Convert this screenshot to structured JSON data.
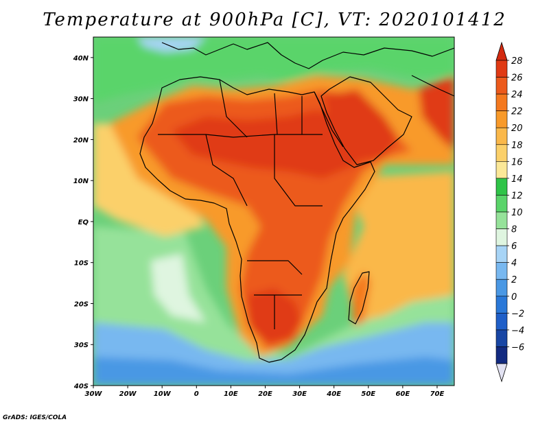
{
  "title": "Temperature at 900hPa [C], VT: 2020101412",
  "credit": "GrADS: IGES/COLA",
  "map": {
    "variable": "Temperature",
    "level": "900hPa",
    "units": "C",
    "valid_time": "2020101412",
    "region": "Africa",
    "lon_range": [
      -30,
      75
    ],
    "lat_range": [
      -40,
      45
    ],
    "lon_ticks": [
      {
        "lon": -30,
        "label": "30W"
      },
      {
        "lon": -20,
        "label": "20W"
      },
      {
        "lon": -10,
        "label": "10W"
      },
      {
        "lon": 0,
        "label": "0"
      },
      {
        "lon": 10,
        "label": "10E"
      },
      {
        "lon": 20,
        "label": "20E"
      },
      {
        "lon": 30,
        "label": "30E"
      },
      {
        "lon": 40,
        "label": "40E"
      },
      {
        "lon": 50,
        "label": "50E"
      },
      {
        "lon": 60,
        "label": "60E"
      },
      {
        "lon": 70,
        "label": "70E"
      }
    ],
    "lat_ticks": [
      {
        "lat": 40,
        "label": "40N"
      },
      {
        "lat": 30,
        "label": "30N"
      },
      {
        "lat": 20,
        "label": "20N"
      },
      {
        "lat": 10,
        "label": "10N"
      },
      {
        "lat": 0,
        "label": "EQ"
      },
      {
        "lat": -10,
        "label": "10S"
      },
      {
        "lat": -20,
        "label": "20S"
      },
      {
        "lat": -30,
        "label": "30S"
      },
      {
        "lat": -40,
        "label": "40S"
      }
    ]
  },
  "colorbar": {
    "levels": [
      28,
      26,
      24,
      22,
      20,
      18,
      16,
      14,
      12,
      10,
      8,
      6,
      4,
      2,
      0,
      -2,
      -4,
      -6
    ],
    "labels": [
      "28",
      "26",
      "24",
      "22",
      "20",
      "18",
      "16",
      "14",
      "12",
      "10",
      "8",
      "6",
      "4",
      "2",
      "0",
      "−2",
      "−4",
      "−6"
    ],
    "colors": [
      "#e03a14",
      "#ec5a1c",
      "#f4791f",
      "#f89a2a",
      "#fab84a",
      "#fbd06a",
      "#fbe898",
      "#2fc448",
      "#5ad46a",
      "#96e29a",
      "#dff5e0",
      "#a7d4f6",
      "#78b8f0",
      "#4a98e4",
      "#2a78d8",
      "#1f5fc8",
      "#1846a4",
      "#122a80"
    ],
    "top_triangle_color": "#d32a10",
    "bottom_triangle_color": "#e2e2f2"
  }
}
